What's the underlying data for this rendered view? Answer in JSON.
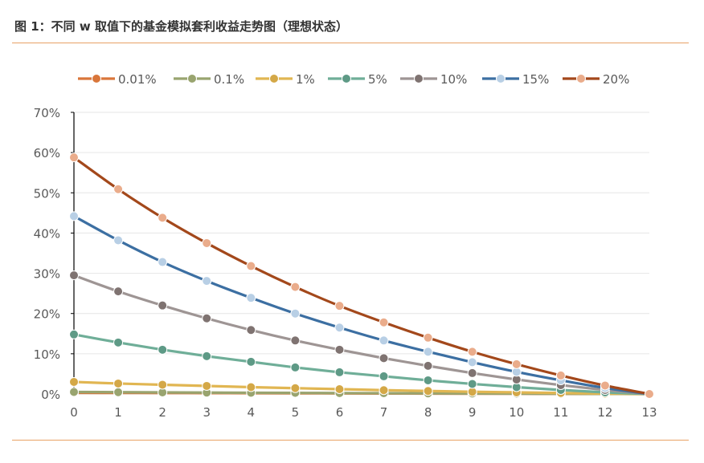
{
  "figure": {
    "title": "图 1：不同 w 取值下的基金模拟套利收益走势图（理想状态）"
  },
  "chart_data": {
    "type": "line",
    "x": [
      0,
      1,
      2,
      3,
      4,
      5,
      6,
      7,
      8,
      9,
      10,
      11,
      12,
      13
    ],
    "xlim": [
      0,
      13
    ],
    "ylim": [
      0,
      70
    ],
    "ytick_labels": [
      "0%",
      "10%",
      "20%",
      "30%",
      "40%",
      "50%",
      "60%",
      "70%"
    ],
    "ytick_values": [
      0,
      10,
      20,
      30,
      40,
      50,
      60,
      70
    ],
    "xtick_labels": [
      "0",
      "1",
      "2",
      "3",
      "4",
      "5",
      "6",
      "7",
      "8",
      "9",
      "10",
      "11",
      "12",
      "13"
    ],
    "grid": true,
    "legend_position": "top",
    "series": [
      {
        "name": "0.01%",
        "line_color": "#D9763A",
        "marker_color": "#D9763A",
        "values": [
          0.3,
          0.27,
          0.25,
          0.22,
          0.2,
          0.18,
          0.15,
          0.12,
          0.1,
          0.08,
          0.06,
          0.04,
          0.02,
          0
        ]
      },
      {
        "name": "0.1%",
        "line_color": "#99A46F",
        "marker_color": "#99A46F",
        "values": [
          0.5,
          0.45,
          0.4,
          0.35,
          0.3,
          0.27,
          0.23,
          0.2,
          0.16,
          0.13,
          0.1,
          0.06,
          0.03,
          0
        ]
      },
      {
        "name": "1%",
        "line_color": "#E1B652",
        "marker_color": "#D4A847",
        "values": [
          3.0,
          2.6,
          2.3,
          2.0,
          1.7,
          1.45,
          1.2,
          0.95,
          0.75,
          0.55,
          0.4,
          0.25,
          0.1,
          0
        ]
      },
      {
        "name": "5%",
        "line_color": "#6FAE98",
        "marker_color": "#5E9A86",
        "values": [
          14.8,
          12.8,
          11.0,
          9.4,
          8.0,
          6.6,
          5.4,
          4.4,
          3.4,
          2.5,
          1.7,
          1.0,
          0.4,
          0
        ]
      },
      {
        "name": "10%",
        "line_color": "#9E9594",
        "marker_color": "#7F7371",
        "values": [
          29.5,
          25.5,
          22.0,
          18.8,
          15.9,
          13.3,
          11.0,
          8.9,
          7.0,
          5.2,
          3.6,
          2.2,
          1.0,
          0
        ]
      },
      {
        "name": "15%",
        "line_color": "#3C6FA2",
        "marker_color": "#B8CFE5",
        "values": [
          44.2,
          38.2,
          32.8,
          28.1,
          23.9,
          20.0,
          16.5,
          13.3,
          10.5,
          7.9,
          5.5,
          3.4,
          1.5,
          0
        ]
      },
      {
        "name": "20%",
        "line_color": "#A3481B",
        "marker_color": "#EAAC8B",
        "values": [
          58.8,
          50.9,
          43.8,
          37.5,
          31.8,
          26.6,
          21.9,
          17.8,
          14.0,
          10.5,
          7.4,
          4.6,
          2.1,
          0
        ]
      }
    ]
  }
}
